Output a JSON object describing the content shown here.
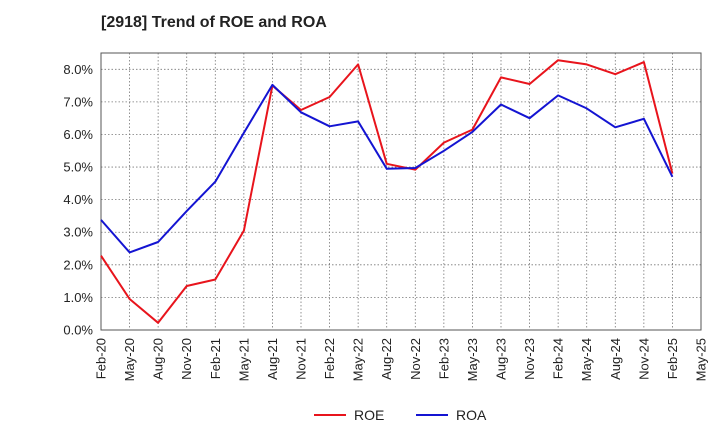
{
  "chart_data": {
    "type": "line",
    "title": "[2918]  Trend of ROE and ROA",
    "xlabel": "",
    "ylabel": "",
    "categories": [
      "Feb-20",
      "May-20",
      "Aug-20",
      "Nov-20",
      "Feb-21",
      "May-21",
      "Aug-21",
      "Nov-21",
      "Feb-22",
      "May-22",
      "Aug-22",
      "Nov-22",
      "Feb-23",
      "May-23",
      "Aug-23",
      "Nov-23",
      "Feb-24",
      "May-24",
      "Aug-24",
      "Nov-24",
      "Feb-25",
      "May-25"
    ],
    "ylim": [
      0,
      8.5
    ],
    "yticks": [
      "0.0%",
      "1.0%",
      "2.0%",
      "3.0%",
      "4.0%",
      "5.0%",
      "6.0%",
      "7.0%",
      "8.0%"
    ],
    "grid": true,
    "legend_position": "bottom",
    "series": [
      {
        "name": "ROE",
        "color": "#e8141c",
        "values": [
          2.28,
          0.95,
          0.22,
          1.35,
          1.55,
          3.05,
          7.5,
          6.75,
          7.15,
          8.15,
          5.1,
          4.92,
          5.75,
          6.15,
          7.75,
          7.55,
          8.28,
          8.15,
          7.85,
          8.22,
          4.8,
          null
        ]
      },
      {
        "name": "ROA",
        "color": "#1414d2",
        "values": [
          3.38,
          2.38,
          2.7,
          3.65,
          4.55,
          6.05,
          7.52,
          6.68,
          6.25,
          6.4,
          4.95,
          4.97,
          5.5,
          6.08,
          6.92,
          6.5,
          7.2,
          6.8,
          6.22,
          6.48,
          4.7,
          null
        ]
      }
    ]
  }
}
